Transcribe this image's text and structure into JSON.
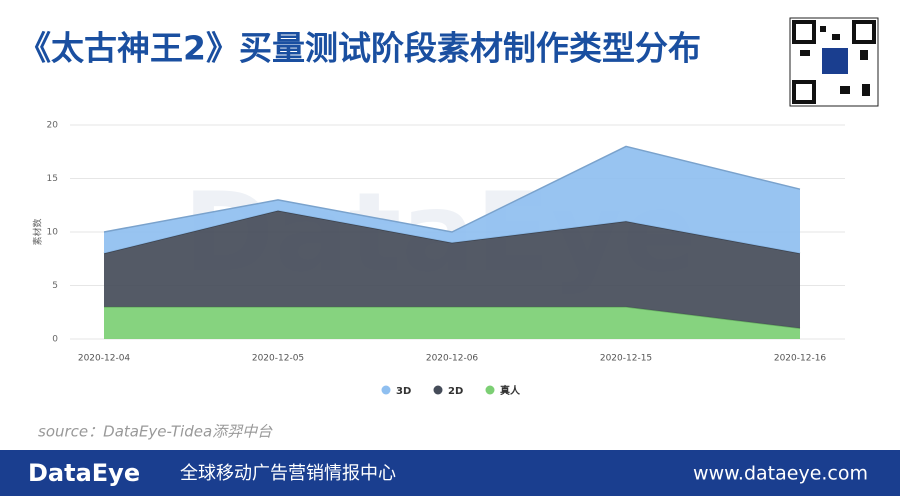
{
  "header": {
    "title": "《太古神王2》买量测试阶段素材制作类型分布"
  },
  "chart_data": {
    "type": "stacked_area",
    "categories": [
      "2020-12-04",
      "2020-12-05",
      "2020-12-06",
      "2020-12-15",
      "2020-12-16"
    ],
    "series": [
      {
        "name": "真人",
        "color": "#7ccf74",
        "values": [
          3,
          3,
          3,
          3,
          1
        ]
      },
      {
        "name": "2D",
        "color": "#454c59",
        "values": [
          5,
          9,
          6,
          8,
          7
        ]
      },
      {
        "name": "3D",
        "color": "#8fbff0",
        "values": [
          2,
          1,
          1,
          7,
          6
        ]
      }
    ],
    "y_label": "素材数",
    "ylim": [
      0,
      20
    ],
    "yticks": [
      0,
      5,
      10,
      15,
      20
    ],
    "grid": true,
    "legend": "bottom",
    "watermark": "DataEye"
  },
  "source": "source：DataEye-Tidea添羿中台",
  "footer": {
    "logo": "DataEye",
    "slogan": "全球移动广告营销情报中心",
    "url": "www.dataeye.com"
  }
}
